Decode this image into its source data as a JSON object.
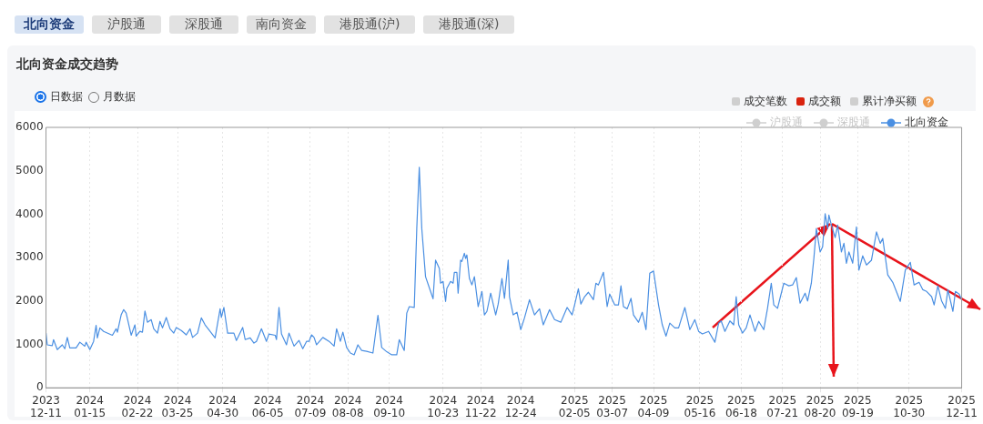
{
  "chart_data": {
    "type": "line",
    "title": "北向资金成交趋势",
    "annotations": [
      "北向资金",
      "沪股通",
      "深股通",
      "南向资金",
      "港股通(沪)",
      "港股通(深)",
      "日数据",
      "月数据",
      "成交笔数",
      "成交额",
      "累计净买额",
      "沪股通",
      "深股通"
    ],
    "legend": "top right",
    "grid": "x",
    "xlim": [
      "2023-12-11",
      "2025-12-11"
    ],
    "xticks": [
      {
        "value": "2023-12-11",
        "label": "2023\n12-11"
      },
      {
        "value": "2024-01-15",
        "label": "2024\n01-15"
      },
      {
        "value": "2024-02-22",
        "label": "2024\n02-22"
      },
      {
        "value": "2024-03-25",
        "label": "2024\n03-25"
      },
      {
        "value": "2024-04-30",
        "label": "2024\n04-30"
      },
      {
        "value": "2024-06-05",
        "label": "2024\n06-05"
      },
      {
        "value": "2024-07-09",
        "label": "2024\n07-09"
      },
      {
        "value": "2024-08-08",
        "label": "2024\n08-08"
      },
      {
        "value": "2024-09-10",
        "label": "2024\n09-10"
      },
      {
        "value": "2024-10-23",
        "label": "2024\n10-23"
      },
      {
        "value": "2024-11-22",
        "label": "2024\n11-22"
      },
      {
        "value": "2024-12-24",
        "label": "2024\n12-24"
      },
      {
        "value": "2025-02-05",
        "label": "2025\n02-05"
      },
      {
        "value": "2025-03-07",
        "label": "2025\n03-07"
      },
      {
        "value": "2025-04-09",
        "label": "2025\n04-09"
      },
      {
        "value": "2025-05-16",
        "label": "2025\n05-16"
      },
      {
        "value": "2025-06-18",
        "label": "2025\n06-18"
      },
      {
        "value": "2025-07-21",
        "label": "2025\n07-21"
      },
      {
        "value": "2025-08-20",
        "label": "2025\n08-20"
      },
      {
        "value": "2025-09-19",
        "label": "2025\n09-19"
      },
      {
        "value": "2025-10-30",
        "label": "2025\n10-30"
      },
      {
        "value": "2025-12-11",
        "label": "2025\n12-11"
      }
    ],
    "ylim": [
      0,
      6000
    ],
    "yticks": [
      0,
      1000,
      2000,
      3000,
      4000,
      5000,
      6000
    ],
    "series": [
      {
        "name": "北向资金",
        "color": "#4a8fe2",
        "x": [
          "2023-12-11",
          "2023-12-12",
          "2023-12-16",
          "2023-12-17",
          "2023-12-20",
          "2023-12-24",
          "2023-12-26",
          "2023-12-28",
          "2023-12-30",
          "2024-01-04",
          "2024-01-07",
          "2024-01-11",
          "2024-01-12",
          "2024-01-15",
          "2024-01-18",
          "2024-01-20",
          "2024-01-21",
          "2024-01-23",
          "2024-01-26",
          "2024-02-02",
          "2024-02-05",
          "2024-02-06",
          "2024-02-09",
          "2024-02-11",
          "2024-02-13",
          "2024-02-17",
          "2024-02-20",
          "2024-02-21",
          "2024-02-24",
          "2024-02-26",
          "2024-02-28",
          "2024-03-01",
          "2024-03-04",
          "2024-03-06",
          "2024-03-09",
          "2024-03-11",
          "2024-03-13",
          "2024-03-16",
          "2024-03-19",
          "2024-03-22",
          "2024-03-24",
          "2024-03-28",
          "2024-04-01",
          "2024-04-04",
          "2024-04-06",
          "2024-04-10",
          "2024-04-13",
          "2024-04-16",
          "2024-04-19",
          "2024-04-24",
          "2024-04-28",
          "2024-04-29",
          "2024-05-01",
          "2024-05-04",
          "2024-05-09",
          "2024-05-11",
          "2024-05-16",
          "2024-05-18",
          "2024-05-22",
          "2024-05-25",
          "2024-05-27",
          "2024-05-31",
          "2024-06-04",
          "2024-06-06",
          "2024-06-11",
          "2024-06-12",
          "2024-06-14",
          "2024-06-16",
          "2024-06-20",
          "2024-06-22",
          "2024-06-26",
          "2024-06-30",
          "2024-07-03",
          "2024-07-06",
          "2024-07-08",
          "2024-07-10",
          "2024-07-12",
          "2024-07-14",
          "2024-07-19",
          "2024-07-24",
          "2024-07-28",
          "2024-07-30",
          "2024-08-02",
          "2024-08-04",
          "2024-08-07",
          "2024-08-10",
          "2024-08-13",
          "2024-08-16",
          "2024-08-19",
          "2024-08-23",
          "2024-08-28",
          "2024-09-01",
          "2024-09-04",
          "2024-09-08",
          "2024-09-12",
          "2024-09-16",
          "2024-09-18",
          "2024-09-22",
          "2024-09-24",
          "2024-09-26",
          "2024-09-30",
          "2024-10-02",
          "2024-10-04",
          "2024-10-06",
          "2024-10-09",
          "2024-10-13",
          "2024-10-15",
          "2024-10-17",
          "2024-10-20",
          "2024-10-21",
          "2024-10-23",
          "2024-10-25",
          "2024-10-26",
          "2024-10-29",
          "2024-10-31",
          "2024-11-01",
          "2024-11-03",
          "2024-11-04",
          "2024-11-06",
          "2024-11-07",
          "2024-11-09",
          "2024-11-10",
          "2024-11-11",
          "2024-11-13",
          "2024-11-15",
          "2024-11-17",
          "2024-11-20",
          "2024-11-23",
          "2024-11-25",
          "2024-11-27",
          "2024-11-30",
          "2024-12-04",
          "2024-12-06",
          "2024-12-09",
          "2024-12-11",
          "2024-12-14",
          "2024-12-15",
          "2024-12-18",
          "2024-12-21",
          "2024-12-24",
          "2024-12-27",
          "2024-12-31",
          "2025-01-04",
          "2025-01-08",
          "2025-01-11",
          "2025-01-16",
          "2025-01-20",
          "2025-01-25",
          "2025-01-30",
          "2025-02-03",
          "2025-02-05",
          "2025-02-08",
          "2025-02-10",
          "2025-02-13",
          "2025-02-16",
          "2025-02-20",
          "2025-02-22",
          "2025-02-24",
          "2025-02-28",
          "2025-03-03",
          "2025-03-05",
          "2025-03-09",
          "2025-03-12",
          "2025-03-14",
          "2025-03-16",
          "2025-03-19",
          "2025-03-22",
          "2025-03-24",
          "2025-03-28",
          "2025-03-31",
          "2025-04-03",
          "2025-04-06",
          "2025-04-09",
          "2025-04-13",
          "2025-04-16",
          "2025-04-19",
          "2025-04-22",
          "2025-04-26",
          "2025-04-29",
          "2025-05-04",
          "2025-05-08",
          "2025-05-12",
          "2025-05-15",
          "2025-05-18",
          "2025-05-23",
          "2025-05-28",
          "2025-05-31",
          "2025-06-02",
          "2025-06-05",
          "2025-06-09",
          "2025-06-12",
          "2025-06-14",
          "2025-06-16",
          "2025-06-19",
          "2025-06-22",
          "2025-06-25",
          "2025-06-29",
          "2025-07-02",
          "2025-07-06",
          "2025-07-09",
          "2025-07-12",
          "2025-07-14",
          "2025-07-17",
          "2025-07-22",
          "2025-07-26",
          "2025-07-29",
          "2025-08-01",
          "2025-08-04",
          "2025-08-08",
          "2025-08-10",
          "2025-08-13",
          "2025-08-15",
          "2025-08-17",
          "2025-08-20",
          "2025-08-22",
          "2025-08-24",
          "2025-08-26",
          "2025-08-27",
          "2025-08-29",
          "2025-09-01",
          "2025-09-03",
          "2025-09-06",
          "2025-09-08",
          "2025-09-10",
          "2025-09-12",
          "2025-09-15",
          "2025-09-18",
          "2025-09-20",
          "2025-09-23",
          "2025-09-26",
          "2025-09-30",
          "2025-10-04",
          "2025-10-07",
          "2025-10-09",
          "2025-10-13",
          "2025-10-17",
          "2025-10-23",
          "2025-10-27",
          "2025-10-31",
          "2025-11-03",
          "2025-11-07",
          "2025-11-10",
          "2025-11-13",
          "2025-11-17",
          "2025-11-19",
          "2025-11-22",
          "2025-11-25",
          "2025-11-28",
          "2025-11-30",
          "2025-12-04",
          "2025-12-06",
          "2025-12-09",
          "2025-12-11"
        ],
        "values": [
          1260,
          990,
          970,
          1110,
          880,
          990,
          900,
          1160,
          920,
          920,
          1050,
          960,
          1050,
          880,
          1070,
          1440,
          1150,
          1380,
          1300,
          1210,
          1360,
          1280,
          1680,
          1800,
          1720,
          1210,
          1450,
          1190,
          1300,
          1280,
          1770,
          1510,
          1570,
          1360,
          1260,
          1530,
          1380,
          1620,
          1360,
          1260,
          1390,
          1320,
          1220,
          1360,
          1160,
          1260,
          1610,
          1450,
          1340,
          1150,
          1820,
          1620,
          1850,
          1260,
          1260,
          1090,
          1390,
          1110,
          1150,
          1030,
          1070,
          1360,
          1070,
          1240,
          1210,
          1110,
          1850,
          1240,
          990,
          1260,
          960,
          1090,
          900,
          1070,
          1070,
          1220,
          1160,
          990,
          1160,
          1070,
          960,
          1360,
          1070,
          1280,
          930,
          800,
          760,
          990,
          860,
          840,
          800,
          1670,
          930,
          830,
          760,
          760,
          1110,
          860,
          1720,
          1870,
          1850,
          3670,
          5080,
          3670,
          2560,
          2220,
          2050,
          2940,
          2750,
          2410,
          2450,
          1990,
          2290,
          2450,
          2410,
          2660,
          2660,
          2180,
          2940,
          2910,
          3100,
          2980,
          3060,
          2520,
          2370,
          2560,
          1870,
          2220,
          1680,
          1760,
          2180,
          1680,
          1930,
          2520,
          2060,
          2940,
          2100,
          1680,
          1740,
          1340,
          1610,
          2030,
          1680,
          1820,
          1450,
          1800,
          1570,
          1510,
          1850,
          1680,
          1910,
          2280,
          1930,
          2100,
          2200,
          2030,
          2410,
          2370,
          2660,
          1870,
          2160,
          1910,
          1910,
          2350,
          1870,
          1820,
          2060,
          1680,
          1510,
          1740,
          1340,
          2640,
          2690,
          1910,
          1450,
          1190,
          1490,
          1380,
          1380,
          1850,
          1340,
          1570,
          1300,
          1240,
          1300,
          1050,
          1490,
          1540,
          1300,
          1540,
          1450,
          2100,
          1450,
          1260,
          1380,
          1680,
          1300,
          1530,
          1340,
          1830,
          2410,
          1910,
          1830,
          2410,
          2350,
          2370,
          2540,
          1950,
          2180,
          2000,
          2410,
          2980,
          3670,
          3130,
          3250,
          4010,
          3670,
          3980,
          3750,
          3460,
          3750,
          3130,
          3330,
          2870,
          3130,
          2870,
          3710,
          2710,
          3040,
          2830,
          2940,
          3590,
          3330,
          3440,
          2600,
          2430,
          1990,
          2710,
          2890,
          2370,
          2430,
          2260,
          2220,
          2100,
          1910,
          2350,
          2000,
          1830,
          2260,
          1760,
          2220,
          2160,
          2030
        ]
      }
    ]
  }
}
